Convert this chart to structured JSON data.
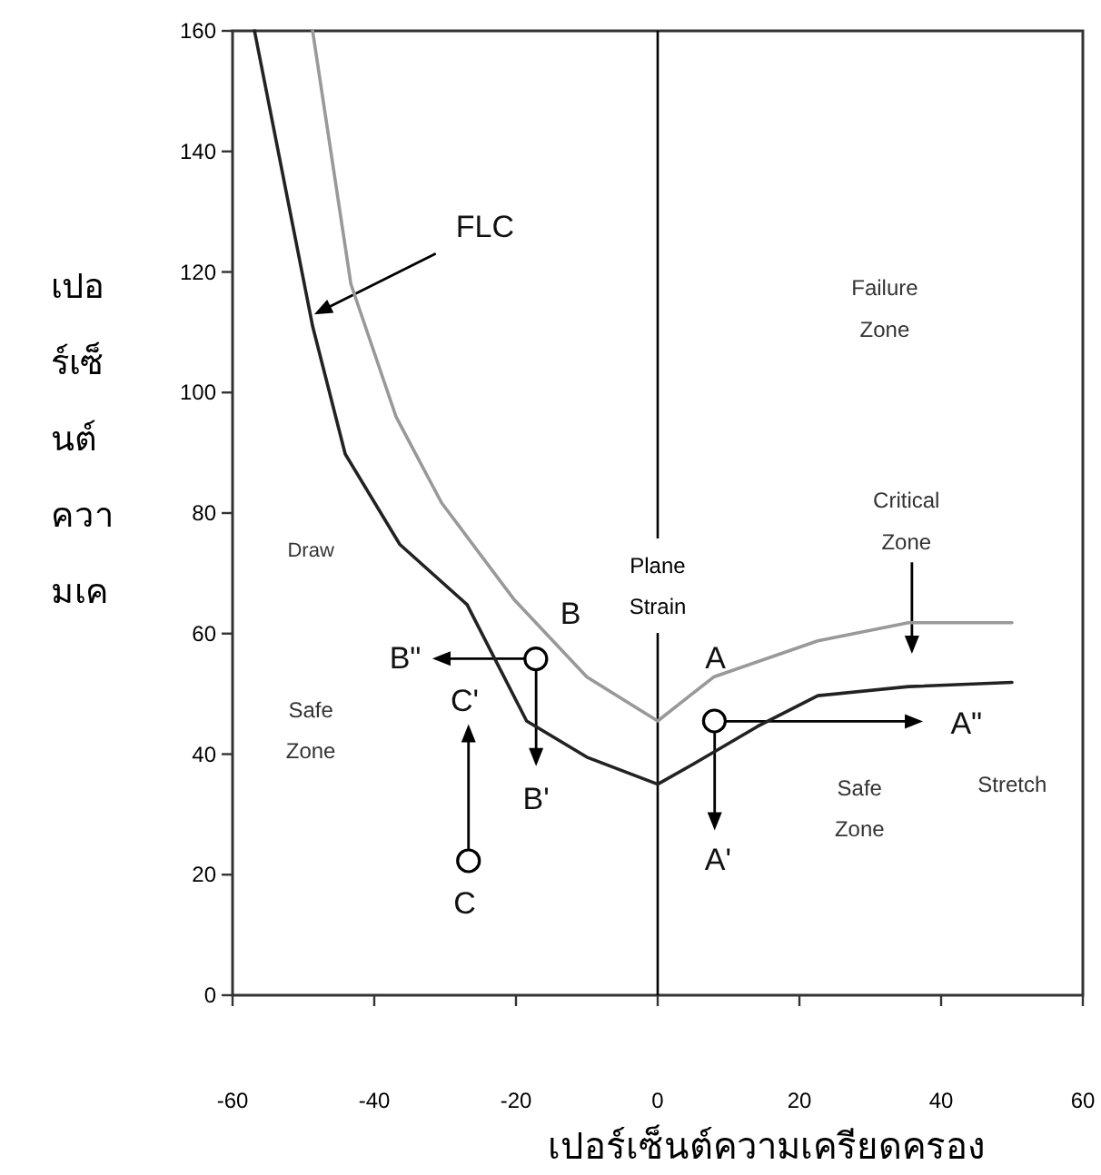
{
  "chart_data": {
    "type": "line",
    "xlabel": "เปอร์เซ็นต์ความเครียดครอง",
    "ylabel": "เปอร์เซ็นต์ความเค",
    "xlim": [
      -60,
      60
    ],
    "ylim": [
      0,
      160
    ],
    "xticks": [
      -60,
      -40,
      -20,
      0,
      20,
      40,
      60
    ],
    "yticks": [
      0,
      20,
      40,
      60,
      80,
      100,
      120,
      140,
      160
    ],
    "series": [
      {
        "color": "#222222",
        "x": [
          -56.9,
          -48.7,
          -44.1,
          -36.4,
          -26.9,
          -18.5,
          -10,
          0,
          5.4,
          14.1,
          22.6,
          35.4,
          50
        ],
        "values": [
          160,
          111,
          89.8,
          74.8,
          64.8,
          45.5,
          39.5,
          35,
          38.6,
          44.6,
          49.7,
          51.2,
          51.9
        ]
      },
      {
        "color": "#999999",
        "x": [
          -48.7,
          -43.3,
          -36.9,
          -30.5,
          -20.3,
          -10,
          0,
          7.9,
          22.6,
          35.4,
          50
        ],
        "values": [
          160,
          118,
          95.9,
          81.7,
          65.7,
          52.8,
          45.5,
          52.8,
          58.8,
          61.8,
          61.8
        ]
      },
      {
        "type": "scatter",
        "color": "#000000",
        "marker": "circle",
        "x": [
          8,
          -17.2,
          -26.7
        ],
        "values": [
          45.5,
          55.8,
          22.3
        ]
      }
    ],
    "ref_lines": [
      {
        "axis": "x",
        "value": 0,
        "label": "Plane Strain",
        "color": "#000000"
      }
    ],
    "annotations": [
      "FLC",
      "Critical Zone",
      "Failure Zone",
      "Draw",
      "Safe Zone",
      "Safe Zone",
      "Stretch",
      "A",
      "B",
      "C",
      "A'",
      "A\"",
      "B'",
      "B\"",
      "C'"
    ]
  }
}
